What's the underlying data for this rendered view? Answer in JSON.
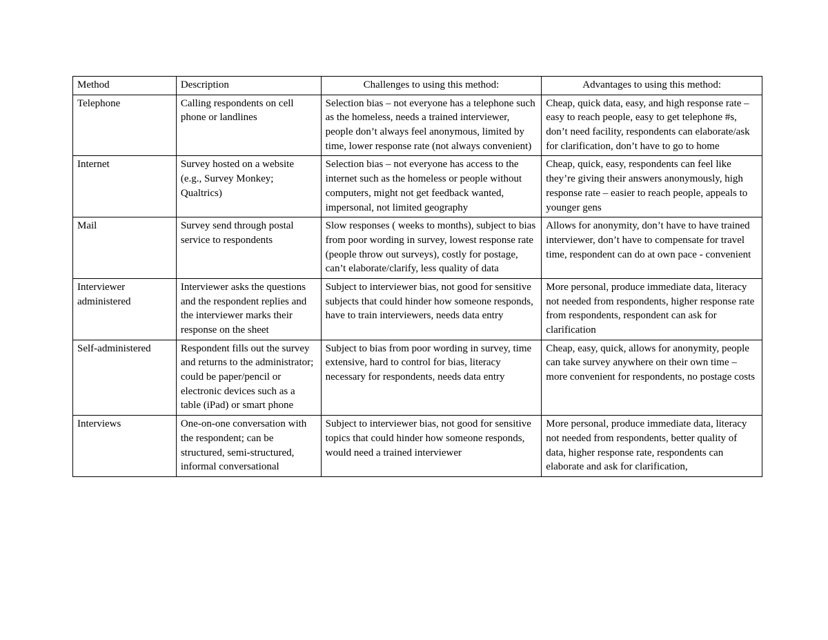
{
  "table": {
    "columns": [
      {
        "label": "Method",
        "align": "left"
      },
      {
        "label": "Description",
        "align": "left"
      },
      {
        "label": "Challenges to using this method:",
        "align": "center"
      },
      {
        "label": "Advantages to using this method:",
        "align": "center"
      }
    ],
    "rows": [
      {
        "method": "Telephone",
        "description": "Calling respondents on cell phone or landlines",
        "challenges": "Selection bias – not everyone has a telephone such as the homeless, needs a trained interviewer, people don’t always feel anonymous, limited by time, lower response rate (not always convenient)",
        "advantages": "Cheap, quick data, easy, and high response rate – easy to reach people, easy to get telephone #s, don’t need facility, respondents can elaborate/ask for clarification, don’t have to go to home"
      },
      {
        "method": "Internet",
        "description": "Survey hosted on a website (e.g., Survey Monkey; Qualtrics)",
        "challenges": "Selection bias – not everyone has access to the internet such as the homeless or people without computers, might not get feedback wanted, impersonal, not limited geography",
        "advantages": "Cheap, quick, easy, respondents can feel like they’re giving their answers anonymously, high response rate – easier to reach people, appeals to younger gens"
      },
      {
        "method": "Mail",
        "description": "Survey send through postal service to respondents",
        "challenges": "Slow responses ( weeks to months), subject to bias from poor wording in survey, lowest response rate (people throw out surveys), costly for postage, can’t elaborate/clarify, less quality of data",
        "advantages": "Allows for anonymity, don’t have to have trained interviewer, don’t have to compensate for travel time, respondent can do at own pace - convenient"
      },
      {
        "method": "Interviewer administered",
        "description": "Interviewer asks the questions and the respondent replies and the interviewer marks their response on the sheet",
        "challenges": "Subject to interviewer bias, not good for sensitive subjects that could hinder how someone responds, have to train interviewers, needs data entry",
        "advantages": "More personal, produce immediate data, literacy not needed from respondents, higher response rate from respondents, respondent can ask for clarification"
      },
      {
        "method": "Self-administered",
        "description": "Respondent fills out the survey and returns to the administrator; could be paper/pencil or electronic devices such as a table (iPad) or smart phone",
        "challenges": "Subject to bias from poor wording in survey, time extensive, hard to control for bias, literacy necessary for respondents, needs data entry",
        "advantages": "Cheap, easy, quick, allows for anonymity, people can  take survey anywhere on their own time – more convenient for respondents, no postage costs"
      },
      {
        "method": "Interviews",
        "description": "One-on-one conversation with the respondent; can be structured, semi-structured, informal conversational",
        "challenges": "Subject to interviewer bias, not good for sensitive topics that could hinder how someone responds, would need a trained interviewer",
        "advantages": "More personal, produce immediate data, literacy not needed from respondents, better quality of data, higher response rate, respondents can elaborate and ask for clarification,"
      }
    ],
    "style": {
      "border_color": "#000000",
      "background_color": "#ffffff",
      "font_family": "Times New Roman",
      "font_size_pt": 11,
      "text_color": "#000000",
      "column_widths_pct": [
        15,
        21,
        32,
        32
      ]
    }
  }
}
